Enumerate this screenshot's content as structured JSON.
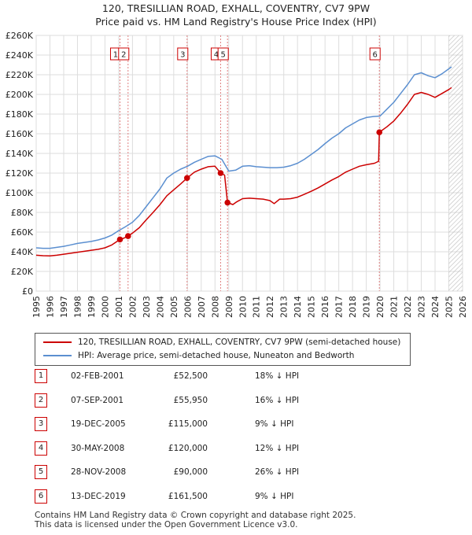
{
  "title": "120, TRESILLIAN ROAD, EXHALL, COVENTRY, CV7 9PW",
  "subtitle": "Price paid vs. HM Land Registry's House Price Index (HPI)",
  "legend": [
    {
      "label": "120, TRESILLIAN ROAD, EXHALL, COVENTRY, CV7 9PW (semi-detached house)",
      "color": "#cc0000"
    },
    {
      "label": "HPI: Average price, semi-detached house, Nuneaton and Bedworth",
      "color": "#5b8fd0"
    }
  ],
  "transactions": [
    {
      "num": "1",
      "date": "02-FEB-2001",
      "price": "£52,500",
      "hpi": "18% ↓ HPI"
    },
    {
      "num": "2",
      "date": "07-SEP-2001",
      "price": "£55,950",
      "hpi": "16% ↓ HPI"
    },
    {
      "num": "3",
      "date": "19-DEC-2005",
      "price": "£115,000",
      "hpi": "9% ↓ HPI"
    },
    {
      "num": "4",
      "date": "30-MAY-2008",
      "price": "£120,000",
      "hpi": "12% ↓ HPI"
    },
    {
      "num": "5",
      "date": "28-NOV-2008",
      "price": "£90,000",
      "hpi": "26% ↓ HPI"
    },
    {
      "num": "6",
      "date": "13-DEC-2019",
      "price": "£161,500",
      "hpi": "9% ↓ HPI"
    }
  ],
  "footer": [
    "Contains HM Land Registry data © Crown copyright and database right 2025.",
    "This data is licensed under the Open Government Licence v3.0."
  ],
  "chart_data": {
    "type": "line",
    "xlim": [
      1995,
      2026
    ],
    "ylim": [
      0,
      260000
    ],
    "x_ticks": [
      1995,
      1996,
      1997,
      1998,
      1999,
      2000,
      2001,
      2002,
      2003,
      2004,
      2005,
      2006,
      2007,
      2008,
      2009,
      2010,
      2011,
      2012,
      2013,
      2014,
      2015,
      2016,
      2017,
      2018,
      2019,
      2020,
      2021,
      2022,
      2023,
      2024,
      2025,
      2026
    ],
    "y_ticks": [
      0,
      20000,
      40000,
      60000,
      80000,
      100000,
      120000,
      140000,
      160000,
      180000,
      200000,
      220000,
      240000,
      260000
    ],
    "y_tick_labels": [
      "£0",
      "£20K",
      "£40K",
      "£60K",
      "£80K",
      "£100K",
      "£120K",
      "£140K",
      "£160K",
      "£180K",
      "£200K",
      "£220K",
      "£240K",
      "£260K"
    ],
    "grid": true,
    "forecast_from": 2025.0,
    "markers": [
      {
        "label": "1",
        "x": 2001.09,
        "y": 52500
      },
      {
        "label": "2",
        "x": 2001.68,
        "y": 55950
      },
      {
        "label": "3",
        "x": 2005.97,
        "y": 115000
      },
      {
        "label": "4",
        "x": 2008.41,
        "y": 120000
      },
      {
        "label": "5",
        "x": 2008.91,
        "y": 90000
      },
      {
        "label": "6",
        "x": 2019.95,
        "y": 161500
      }
    ],
    "series": [
      {
        "name": "HPI: Average price, semi-detached house, Nuneaton and Bedworth",
        "color": "#5b8fd0",
        "points": [
          [
            1995.0,
            44000
          ],
          [
            1995.5,
            43500
          ],
          [
            1996.0,
            43500
          ],
          [
            1996.5,
            44500
          ],
          [
            1997.0,
            45500
          ],
          [
            1997.5,
            47000
          ],
          [
            1998.0,
            48500
          ],
          [
            1998.5,
            49500
          ],
          [
            1999.0,
            50500
          ],
          [
            1999.5,
            52000
          ],
          [
            2000.0,
            54000
          ],
          [
            2000.5,
            57000
          ],
          [
            2001.0,
            61500
          ],
          [
            2001.5,
            65500
          ],
          [
            2002.0,
            70000
          ],
          [
            2002.5,
            77000
          ],
          [
            2003.0,
            86000
          ],
          [
            2003.5,
            95000
          ],
          [
            2004.0,
            104000
          ],
          [
            2004.5,
            115000
          ],
          [
            2005.0,
            120000
          ],
          [
            2005.5,
            124000
          ],
          [
            2006.0,
            127000
          ],
          [
            2006.5,
            131000
          ],
          [
            2007.0,
            134000
          ],
          [
            2007.5,
            137000
          ],
          [
            2008.0,
            137500
          ],
          [
            2008.5,
            134000
          ],
          [
            2009.0,
            122000
          ],
          [
            2009.5,
            123000
          ],
          [
            2010.0,
            127000
          ],
          [
            2010.5,
            127500
          ],
          [
            2011.0,
            126500
          ],
          [
            2011.5,
            126000
          ],
          [
            2012.0,
            125500
          ],
          [
            2012.5,
            125500
          ],
          [
            2013.0,
            126000
          ],
          [
            2013.5,
            127500
          ],
          [
            2014.0,
            130000
          ],
          [
            2014.5,
            134000
          ],
          [
            2015.0,
            139000
          ],
          [
            2015.5,
            144000
          ],
          [
            2016.0,
            150000
          ],
          [
            2016.5,
            155500
          ],
          [
            2017.0,
            160000
          ],
          [
            2017.5,
            166000
          ],
          [
            2018.0,
            170000
          ],
          [
            2018.5,
            174000
          ],
          [
            2019.0,
            176500
          ],
          [
            2019.5,
            177500
          ],
          [
            2020.0,
            178000
          ],
          [
            2020.5,
            185000
          ],
          [
            2021.0,
            192000
          ],
          [
            2021.5,
            201000
          ],
          [
            2022.0,
            210000
          ],
          [
            2022.5,
            220000
          ],
          [
            2023.0,
            222000
          ],
          [
            2023.5,
            219000
          ],
          [
            2024.0,
            217000
          ],
          [
            2024.5,
            221000
          ],
          [
            2025.0,
            226000
          ],
          [
            2025.2,
            228000
          ]
        ]
      },
      {
        "name": "120, TRESILLIAN ROAD, EXHALL, COVENTRY, CV7 9PW (semi-detached house)",
        "color": "#cc0000",
        "points": [
          [
            1995.0,
            36500
          ],
          [
            1995.5,
            36000
          ],
          [
            1996.0,
            35800
          ],
          [
            1996.5,
            36500
          ],
          [
            1997.0,
            37500
          ],
          [
            1997.5,
            38500
          ],
          [
            1998.0,
            39500
          ],
          [
            1998.5,
            40500
          ],
          [
            1999.0,
            41500
          ],
          [
            1999.5,
            42500
          ],
          [
            2000.0,
            44000
          ],
          [
            2000.5,
            47000
          ],
          [
            2001.09,
            52500
          ],
          [
            2001.4,
            54000
          ],
          [
            2001.68,
            55950
          ],
          [
            2002.0,
            59000
          ],
          [
            2002.5,
            64500
          ],
          [
            2003.0,
            72500
          ],
          [
            2003.5,
            80000
          ],
          [
            2004.0,
            88000
          ],
          [
            2004.5,
            97000
          ],
          [
            2005.0,
            103000
          ],
          [
            2005.5,
            109000
          ],
          [
            2005.97,
            115000
          ],
          [
            2006.5,
            121000
          ],
          [
            2007.0,
            124000
          ],
          [
            2007.5,
            126500
          ],
          [
            2008.0,
            127000
          ],
          [
            2008.41,
            120000
          ],
          [
            2008.7,
            118000
          ],
          [
            2008.91,
            90000
          ],
          [
            2009.3,
            88000
          ],
          [
            2009.6,
            91000
          ],
          [
            2010.0,
            94000
          ],
          [
            2010.5,
            94500
          ],
          [
            2011.0,
            94000
          ],
          [
            2011.5,
            93500
          ],
          [
            2012.0,
            92000
          ],
          [
            2012.3,
            89000
          ],
          [
            2012.7,
            93500
          ],
          [
            2013.0,
            93500
          ],
          [
            2013.5,
            94000
          ],
          [
            2014.0,
            95500
          ],
          [
            2014.5,
            98500
          ],
          [
            2015.0,
            101500
          ],
          [
            2015.5,
            105000
          ],
          [
            2016.0,
            109000
          ],
          [
            2016.5,
            113000
          ],
          [
            2017.0,
            116500
          ],
          [
            2017.5,
            121000
          ],
          [
            2018.0,
            124000
          ],
          [
            2018.5,
            127000
          ],
          [
            2019.0,
            128500
          ],
          [
            2019.6,
            130000
          ],
          [
            2019.9,
            132000
          ],
          [
            2019.95,
            161500
          ],
          [
            2020.5,
            167000
          ],
          [
            2021.0,
            173000
          ],
          [
            2021.5,
            181000
          ],
          [
            2022.0,
            190000
          ],
          [
            2022.5,
            200000
          ],
          [
            2023.0,
            202000
          ],
          [
            2023.5,
            200000
          ],
          [
            2024.0,
            197000
          ],
          [
            2024.5,
            201000
          ],
          [
            2025.0,
            205000
          ],
          [
            2025.2,
            207000
          ]
        ]
      }
    ]
  }
}
